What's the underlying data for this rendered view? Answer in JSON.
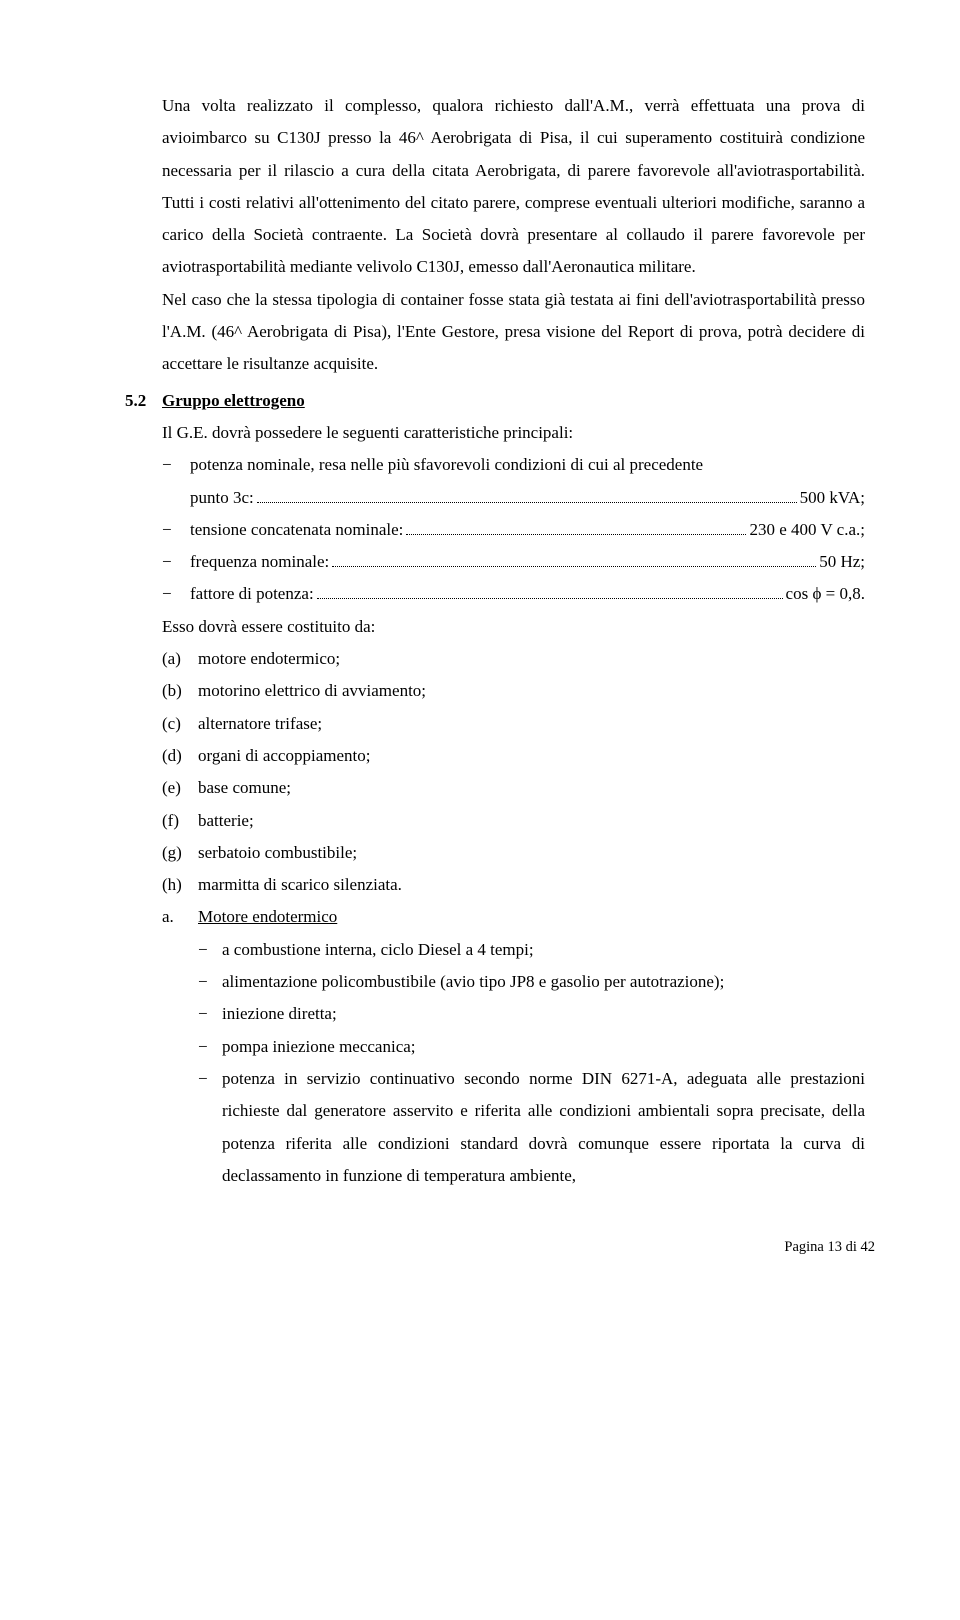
{
  "para1": "Una volta realizzato il complesso, qualora richiesto dall'A.M., verrà effettuata una prova di avioimbarco su C130J presso la 46^ Aerobrigata di Pisa, il cui superamento costituirà condizione necessaria per il rilascio a cura della citata Aerobrigata, di parere favorevole all'aviotrasportabilità. Tutti i costi relativi all'ottenimento del citato parere, comprese eventuali ulteriori modifiche, saranno a carico della Società contraente. La Società dovrà presentare al collaudo il parere favorevole per aviotrasportabilità mediante velivolo C130J, emesso dall'Aeronautica militare.",
  "para2": "Nel caso che la stessa tipologia di container fosse stata già testata ai fini dell'aviotrasportabilità presso l'A.M. (46^ Aerobrigata di Pisa), l'Ente Gestore, presa visione del Report di prova, potrà decidere di accettare le risultanze acquisite.",
  "section": {
    "num": "5.2",
    "title": "Gruppo elettrogeno"
  },
  "intro": "Il G.E. dovrà possedere le seguenti caratteristiche principali:",
  "specs": [
    {
      "left_a": "potenza nominale, resa nelle più sfavorevoli condizioni di cui al precedente",
      "left_b": "punto 3c:",
      "right": "500 kVA;"
    },
    {
      "left_b": "tensione concatenata nominale:",
      "right": "230 e 400 V c.a.;"
    },
    {
      "left_b": "frequenza nominale:",
      "right": "50 Hz;"
    },
    {
      "left_b": "fattore di potenza:",
      "right": " cos ϕ = 0,8."
    }
  ],
  "components_intro": "Esso dovrà essere costituito da:",
  "components": [
    {
      "m": "(a)",
      "t": "motore endotermico;"
    },
    {
      "m": "(b)",
      "t": "motorino elettrico di avviamento;"
    },
    {
      "m": "(c)",
      "t": "alternatore trifase;"
    },
    {
      "m": "(d)",
      "t": "organi di accoppiamento;"
    },
    {
      "m": "(e)",
      "t": "base comune;"
    },
    {
      "m": "(f)",
      "t": "batterie;"
    },
    {
      "m": "(g)",
      "t": "serbatoio combustibile;"
    },
    {
      "m": "(h)",
      "t": "marmitta di scarico silenziata."
    }
  ],
  "sub": {
    "m": "a.",
    "title": "Motore endotermico"
  },
  "sub_items": [
    "a combustione interna, ciclo Diesel a 4 tempi;",
    "alimentazione policombustibile (avio tipo JP8 e gasolio per autotrazione);",
    "iniezione diretta;",
    "pompa iniezione meccanica;",
    "potenza in servizio continuativo secondo norme DIN 6271-A, adeguata alle prestazioni richieste dal generatore asservito e riferita alle condizioni ambientali sopra precisate, della potenza riferita alle condizioni standard dovrà comunque essere riportata la curva di declassamento in funzione di temperatura ambiente,"
  ],
  "footer": "Pagina 13 di 42"
}
